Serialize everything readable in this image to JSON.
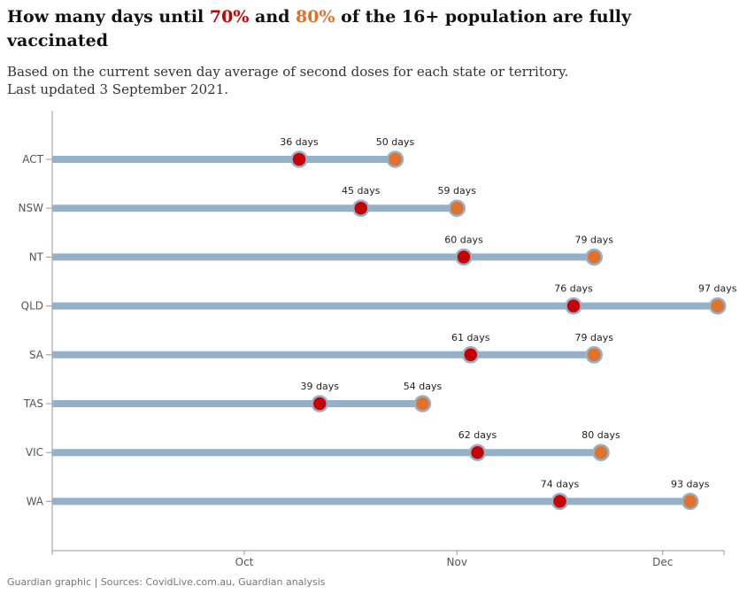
{
  "header": {
    "title_prefix": "How many days until ",
    "title_70": "70%",
    "title_and": " and ",
    "title_80": "80%",
    "title_suffix": " of the 16+ population are fully vaccinated",
    "subtitle": "Based on the current seven day average of second doses for each state or territory. Last updated 3 September 2021."
  },
  "footer": {
    "source": "Guardian graphic | Sources: CovidLive.com.au, Guardian analysis"
  },
  "chart_data": {
    "type": "dumbbell",
    "title": "How many days until 70% and 80% of the 16+ population are fully vaccinated",
    "x_axis": {
      "type": "date",
      "start_date": "2021-09-03",
      "ticks": [
        {
          "label": "Oct",
          "days": 28
        },
        {
          "label": "Nov",
          "days": 59
        },
        {
          "label": "Dec",
          "days": 89
        }
      ],
      "range_days": [
        0,
        97
      ]
    },
    "label_suffix": " days",
    "colors": {
      "track": "#94b1ca",
      "seventy": "#c70000",
      "eighty": "#e0722b",
      "axis": "#999999"
    },
    "categories": [
      "ACT",
      "NSW",
      "NT",
      "QLD",
      "SA",
      "TAS",
      "VIC",
      "WA"
    ],
    "series": [
      {
        "name": "70%",
        "values": [
          36,
          45,
          60,
          76,
          61,
          39,
          62,
          74
        ]
      },
      {
        "name": "80%",
        "values": [
          50,
          59,
          79,
          97,
          79,
          54,
          80,
          93
        ]
      }
    ]
  }
}
